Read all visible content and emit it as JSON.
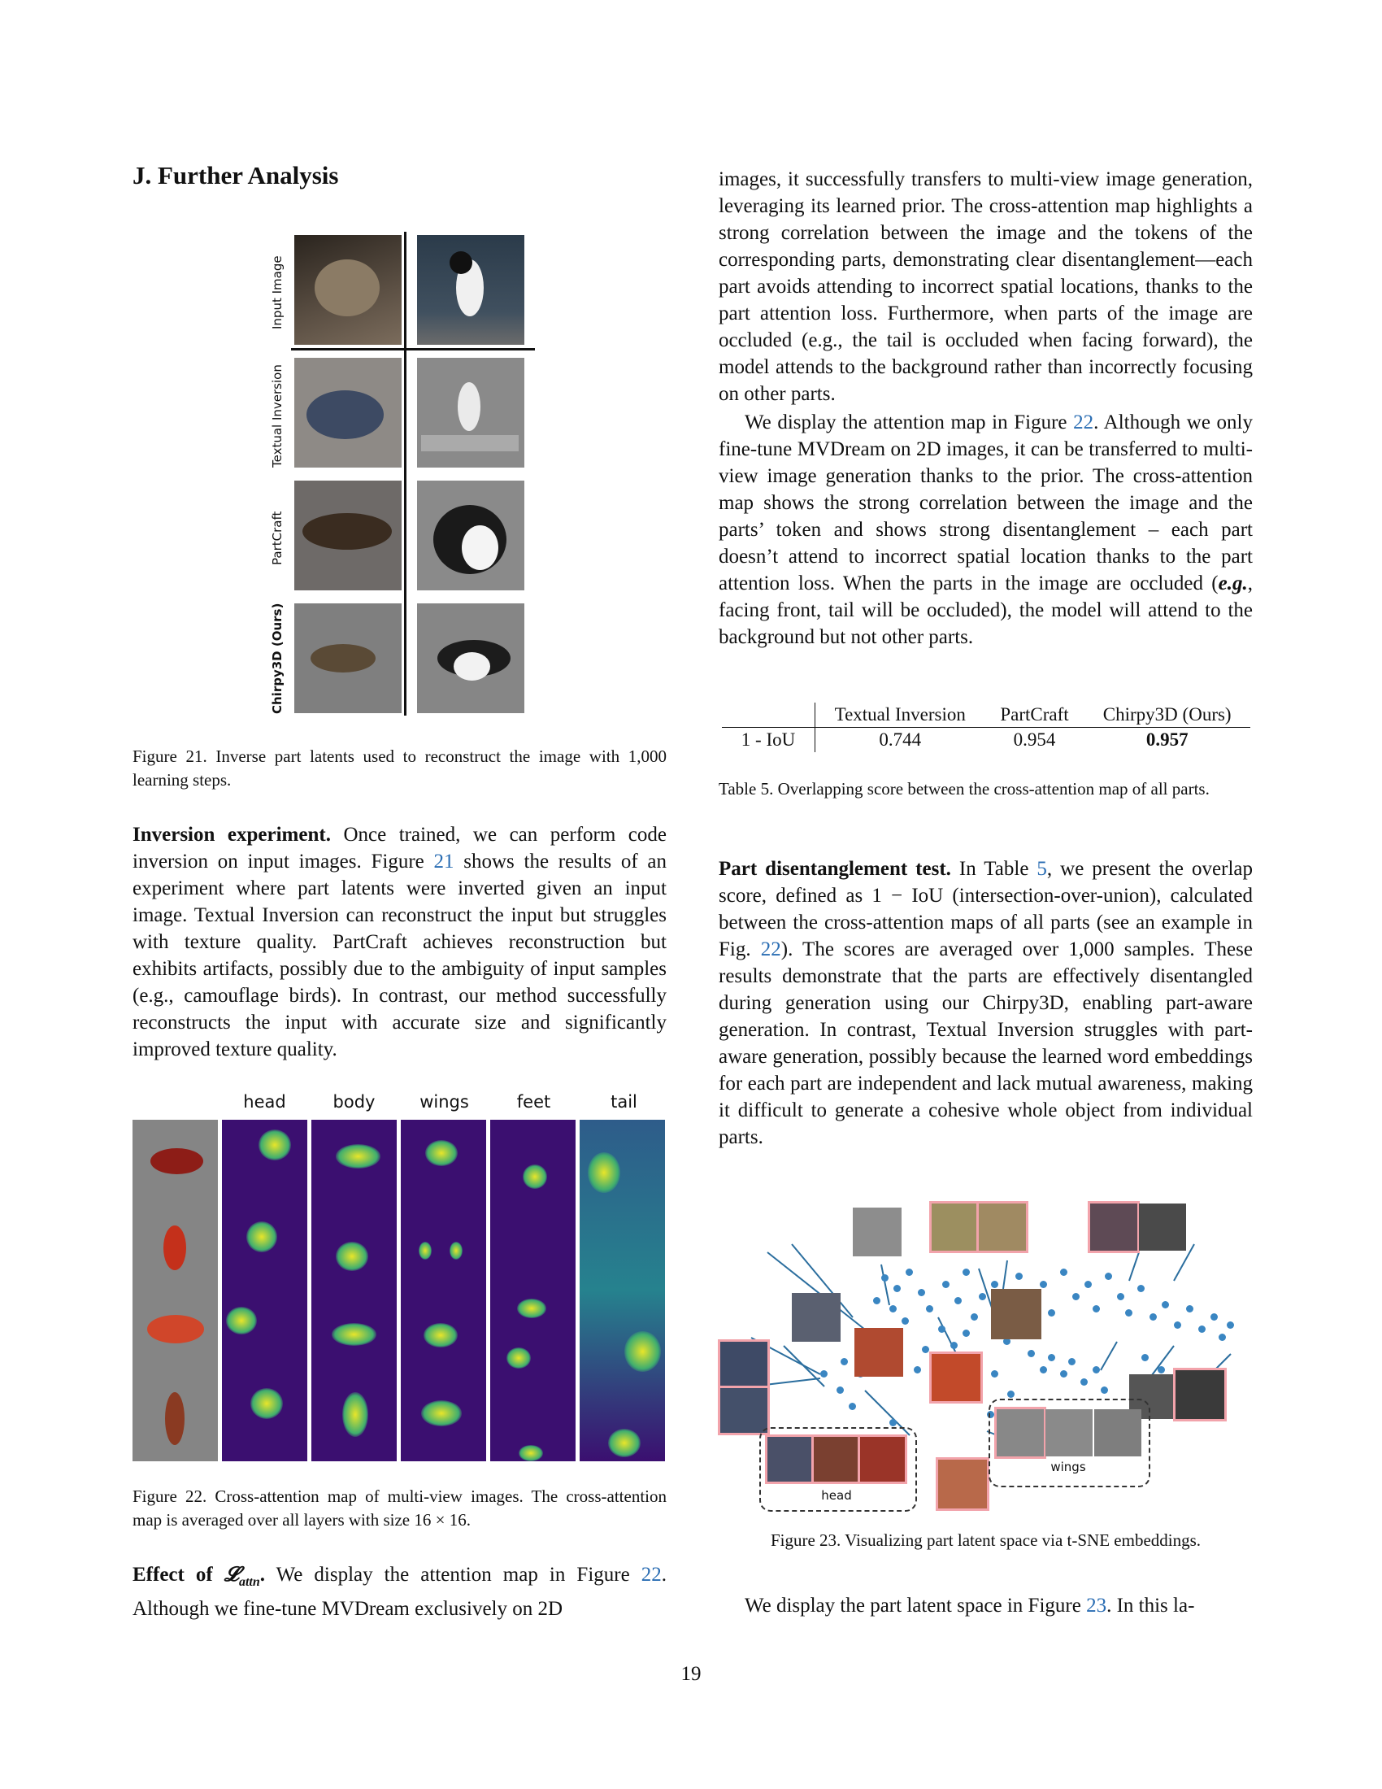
{
  "section_title": "J. Further Analysis",
  "fig21": {
    "row_labels": [
      "Input Image",
      "Textual Inversion",
      "PartCraft",
      "Chirpy3D (Ours)"
    ],
    "caption": "Figure 21. Inverse part latents used to reconstruct the image with 1,000 learning steps."
  },
  "inversion": {
    "heading": "Inversion experiment.",
    "text_a": " Once trained, we can perform code inversion on input images. Figure ",
    "ref": "21",
    "text_b": " shows the results of an experiment where part latents were inverted given an input image. Textual Inversion can reconstruct the input but struggles with texture quality. PartCraft achieves reconstruction but exhibits artifacts, possibly due to the ambiguity of input samples (e.g., camouflage birds). In contrast, our method successfully reconstructs the input with accurate size and significantly improved texture quality."
  },
  "fig22": {
    "columns": [
      "head",
      "body",
      "wings",
      "feet",
      "tail"
    ],
    "caption": "Figure 22. Cross-attention map of multi-view images. The cross-attention map is averaged over all layers with size 16 × 16."
  },
  "effect": {
    "heading": "Effect of ",
    "symbol": "𝓛",
    "subscript": "attn",
    "period": ".",
    "text_a": " We display the attention map in Figure ",
    "ref": "22",
    "text_b": ". Although we fine-tune MVDream exclusively on 2D"
  },
  "right_col": {
    "p1": "images, it successfully transfers to multi-view image generation, leveraging its learned prior. The cross-attention map highlights a strong correlation between the image and the tokens of the corresponding parts, demonstrating clear disentanglement—each part avoids attending to incorrect spatial locations, thanks to the part attention loss. Furthermore, when parts of the image are occluded (e.g., the tail is occluded when facing forward), the model attends to the background rather than incorrectly focusing on other parts.",
    "p2_a": "We display the attention map in Figure ",
    "p2_ref": "22",
    "p2_b": ". Although we only fine-tune MVDream on 2D images, it can be transferred to multi-view image generation thanks to the prior. The cross-attention map shows the strong correlation between the image and the parts’ token and shows strong disentanglement – each part doesn’t attend to incorrect spatial location thanks to the part attention loss. When the parts in the image are occluded (",
    "p2_eg": "e.g.",
    "p2_c": ", facing front, tail will be occluded), the model will attend to the background but not other parts."
  },
  "table5": {
    "headers": [
      "",
      "Textual Inversion",
      "PartCraft",
      "Chirpy3D (Ours)"
    ],
    "row_label": "1 - IoU",
    "values": [
      "0.744",
      "0.954",
      "0.957"
    ],
    "caption": "Table 5. Overlapping score between the cross-attention map of all parts."
  },
  "disentangle": {
    "heading": "Part disentanglement test.",
    "text_a": " In Table ",
    "ref_table": "5",
    "text_b": ", we present the overlap score, defined as 1 − IoU (intersection-over-union), calculated between the cross-attention maps of all parts (see an example in Fig. ",
    "ref_fig": "22",
    "text_c": "). The scores are averaged over 1,000 samples. These results demonstrate that the parts are effectively disentangled during generation using our Chirpy3D, enabling part-aware generation. In contrast, Textual Inversion struggles with part-aware generation, possibly because the learned word embeddings for each part are independent and lack mutual awareness, making it difficult to generate a cohesive whole object from individual parts."
  },
  "fig23": {
    "group_head": "head",
    "group_wings": "wings",
    "caption": "Figure 23. Visualizing part latent space via t-SNE embeddings."
  },
  "last_line": {
    "text_a": "We display the part latent space in Figure ",
    "ref": "23",
    "text_b": ". In this la-"
  },
  "page_number": "19"
}
